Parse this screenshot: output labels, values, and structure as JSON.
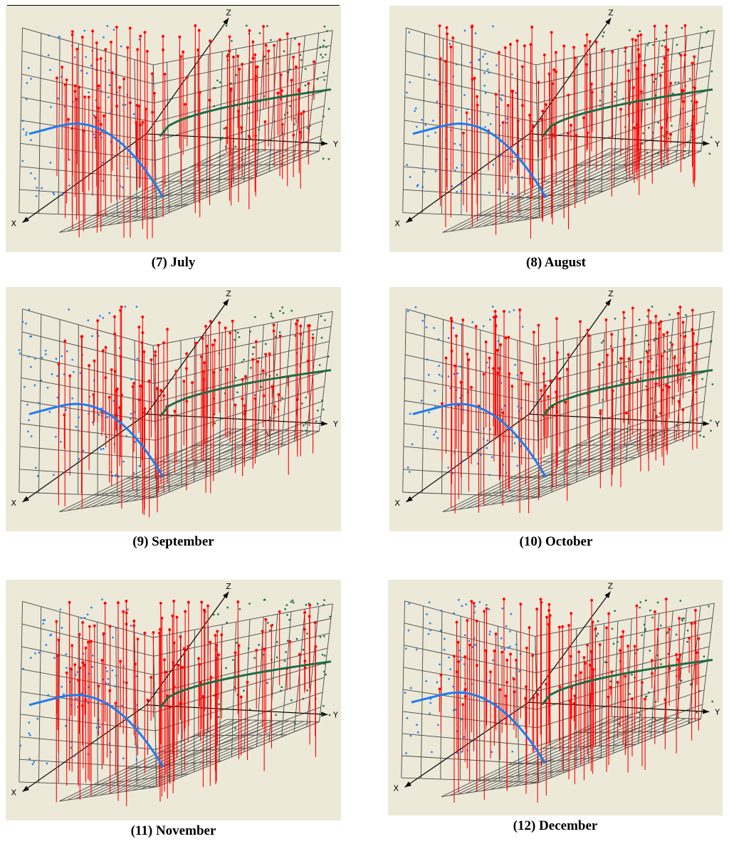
{
  "figure": {
    "captions": [
      "(7) July",
      "(8) August",
      "(9) September",
      "(10) October",
      "(11) November",
      "(12) December"
    ],
    "axis_labels": {
      "x": "X",
      "y": "Y",
      "z": "Z"
    }
  },
  "colors": {
    "background": "#ece9d8",
    "grid": "#4a4a4a",
    "stems": "#ff0000",
    "blue_points": "#1e7cf0",
    "green_points": "#1f6b45",
    "axes": "#000000"
  },
  "chart_data": [
    {
      "type": "scatter",
      "subtype": "3d-stem",
      "title": "(7) July",
      "axes": [
        "X",
        "Y",
        "Z"
      ],
      "grid": true,
      "series": [
        {
          "color": "blue",
          "fit": "quadratic",
          "points": 85
        },
        {
          "color": "red",
          "type": "stem",
          "points": 110
        },
        {
          "color": "green",
          "fit": "increasing-curve",
          "points": 70
        }
      ]
    },
    {
      "type": "scatter",
      "subtype": "3d-stem",
      "title": "(8) August",
      "axes": [
        "X",
        "Y",
        "Z"
      ],
      "grid": true,
      "series": [
        {
          "color": "blue",
          "fit": "quadratic",
          "points": 85
        },
        {
          "color": "red",
          "type": "stem",
          "points": 110
        },
        {
          "color": "green",
          "fit": "increasing-curve",
          "points": 70
        }
      ]
    },
    {
      "type": "scatter",
      "subtype": "3d-stem",
      "title": "(9) September",
      "axes": [
        "X",
        "Y",
        "Z"
      ],
      "grid": true,
      "series": [
        {
          "color": "blue",
          "fit": "quadratic",
          "points": 85
        },
        {
          "color": "red",
          "type": "stem",
          "points": 110
        },
        {
          "color": "green",
          "fit": "increasing-curve",
          "points": 70
        }
      ]
    },
    {
      "type": "scatter",
      "subtype": "3d-stem",
      "title": "(10) October",
      "axes": [
        "X",
        "Y",
        "Z"
      ],
      "grid": true,
      "series": [
        {
          "color": "blue",
          "fit": "quadratic",
          "points": 85
        },
        {
          "color": "red",
          "type": "stem",
          "points": 110
        },
        {
          "color": "green",
          "fit": "increasing-curve",
          "points": 70
        }
      ]
    },
    {
      "type": "scatter",
      "subtype": "3d-stem",
      "title": "(11) November",
      "axes": [
        "X",
        "Y",
        "Z"
      ],
      "grid": true,
      "series": [
        {
          "color": "blue",
          "fit": "quadratic",
          "points": 85
        },
        {
          "color": "red",
          "type": "stem",
          "points": 110
        },
        {
          "color": "green",
          "fit": "increasing-curve",
          "points": 70
        }
      ]
    },
    {
      "type": "scatter",
      "subtype": "3d-stem",
      "title": "(12) December",
      "axes": [
        "X",
        "Y",
        "Z"
      ],
      "grid": true,
      "series": [
        {
          "color": "blue",
          "fit": "quadratic",
          "points": 85
        },
        {
          "color": "red",
          "type": "stem",
          "points": 110
        },
        {
          "color": "green",
          "fit": "increasing-curve",
          "points": 70
        }
      ]
    }
  ]
}
